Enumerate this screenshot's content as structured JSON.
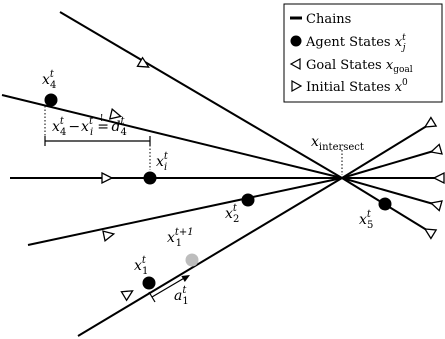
{
  "legend": {
    "chains_label": "Chains",
    "agent_label": "Agent States",
    "agent_sym": "x",
    "agent_sup": "t",
    "agent_sub": "j",
    "goal_label": "Goal States",
    "goal_sym": "x",
    "goal_sub": "goal",
    "initial_label": "Initial States",
    "initial_sym": "x",
    "initial_sup": "0"
  },
  "labels": {
    "x4": {
      "sym": "x",
      "sup": "t",
      "sub": "4"
    },
    "xi": {
      "sym": "x",
      "sup": "t",
      "sub": "i"
    },
    "x2": {
      "sym": "x",
      "sup": "t",
      "sub": "2"
    },
    "x5": {
      "sym": "x",
      "sup": "t",
      "sub": "5"
    },
    "x1": {
      "sym": "x",
      "sup": "t",
      "sub": "1"
    },
    "x1next": {
      "sym": "x",
      "sup": "t+1",
      "sub": "1"
    },
    "a1": {
      "sym": "a",
      "sup": "t",
      "sub": "1"
    },
    "intersect": {
      "sym": "x",
      "sub": "intersect"
    },
    "distance": {
      "lhs_sym": "x",
      "lhs_sup": "t",
      "lhs_sub": "4",
      "minus": "−",
      "rhs_sym": "x",
      "rhs_sup": "t",
      "rhs_sub": "i",
      "eq": "=",
      "eq_mark": "!",
      "d_sym": "d",
      "d_sup": "t",
      "d_sub": "4"
    }
  },
  "colors": {
    "ink": "#000000",
    "next_state": "#bdbdbd"
  }
}
